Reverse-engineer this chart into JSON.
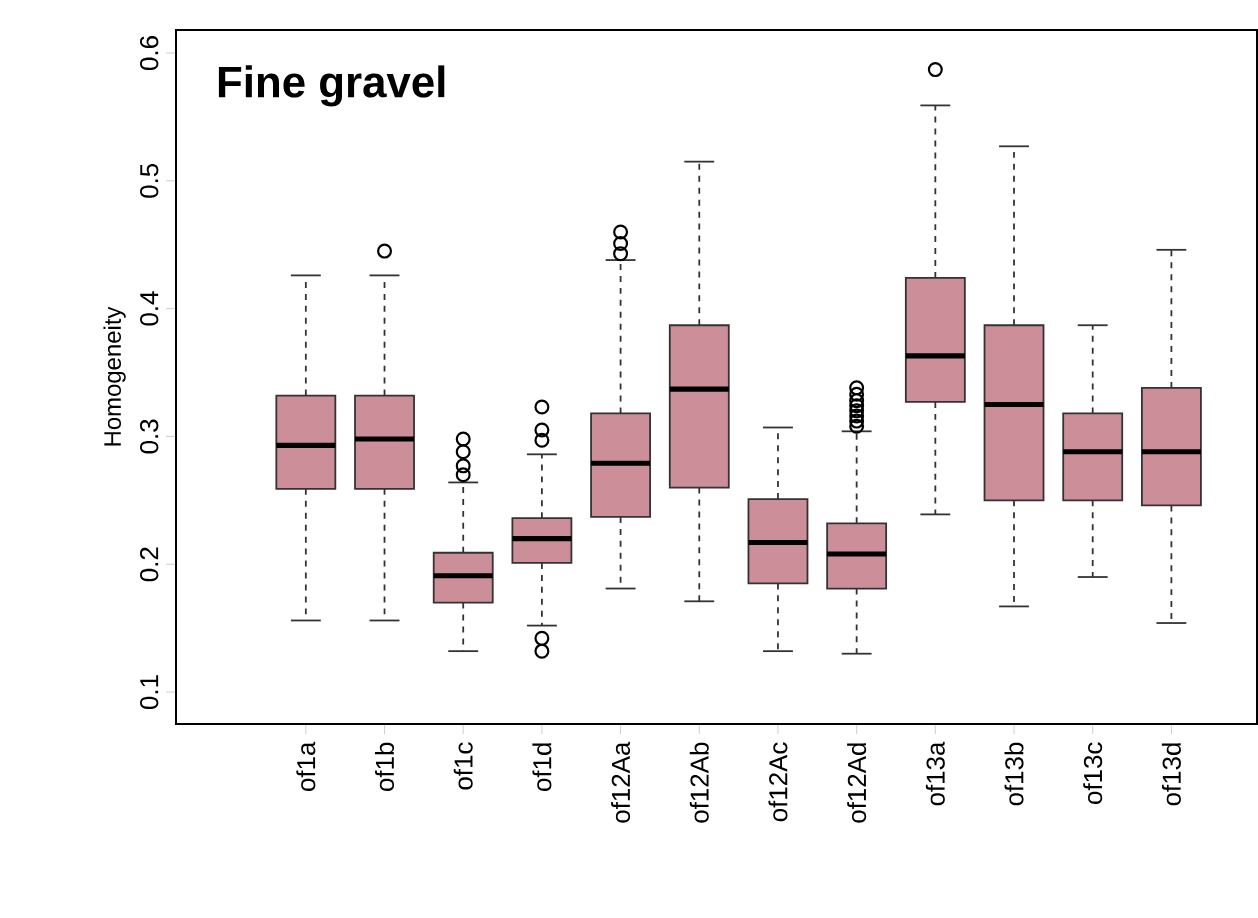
{
  "chart_data": {
    "type": "box",
    "title": "Fine gravel",
    "ylabel": "Homogeneity",
    "categories": [
      "of1a",
      "of1b",
      "of1c",
      "of1d",
      "of12Aa",
      "of12Ab",
      "of12Ac",
      "of12Ad",
      "of13a",
      "of13b",
      "of13c",
      "of13d"
    ],
    "color": "#cc8f99",
    "marker": "circle",
    "ylim": [
      0.075,
      0.618
    ],
    "yticks": [
      0.1,
      0.2,
      0.3,
      0.4,
      0.5,
      0.6
    ],
    "boxes": [
      {
        "low": 0.156,
        "q1": 0.259,
        "median": 0.293,
        "q3": 0.332,
        "high": 0.426
      },
      {
        "low": 0.156,
        "q1": 0.259,
        "median": 0.298,
        "q3": 0.332,
        "high": 0.426,
        "outliers": [
          0.445
        ]
      },
      {
        "low": 0.132,
        "q1": 0.17,
        "median": 0.191,
        "q3": 0.209,
        "high": 0.264,
        "outliers": [
          0.27,
          0.277,
          0.288,
          0.298
        ]
      },
      {
        "low": 0.152,
        "q1": 0.201,
        "median": 0.22,
        "q3": 0.236,
        "high": 0.286,
        "outliers": [
          0.132,
          0.142,
          0.297,
          0.305,
          0.323
        ]
      },
      {
        "low": 0.181,
        "q1": 0.237,
        "median": 0.279,
        "q3": 0.318,
        "high": 0.438,
        "outliers": [
          0.443,
          0.451,
          0.46
        ]
      },
      {
        "low": 0.171,
        "q1": 0.26,
        "median": 0.337,
        "q3": 0.387,
        "high": 0.515
      },
      {
        "low": 0.132,
        "q1": 0.185,
        "median": 0.217,
        "q3": 0.251,
        "high": 0.307
      },
      {
        "low": 0.13,
        "q1": 0.181,
        "median": 0.208,
        "q3": 0.232,
        "high": 0.304,
        "outliers": [
          0.308,
          0.312,
          0.316,
          0.32,
          0.324,
          0.328,
          0.333,
          0.338
        ]
      },
      {
        "low": 0.239,
        "q1": 0.327,
        "median": 0.363,
        "q3": 0.424,
        "high": 0.559,
        "outliers": [
          0.587
        ]
      },
      {
        "low": 0.167,
        "q1": 0.25,
        "median": 0.325,
        "q3": 0.387,
        "high": 0.527
      },
      {
        "low": 0.19,
        "q1": 0.25,
        "median": 0.288,
        "q3": 0.318,
        "high": 0.387
      },
      {
        "low": 0.154,
        "q1": 0.246,
        "median": 0.288,
        "q3": 0.338,
        "high": 0.446
      }
    ]
  }
}
